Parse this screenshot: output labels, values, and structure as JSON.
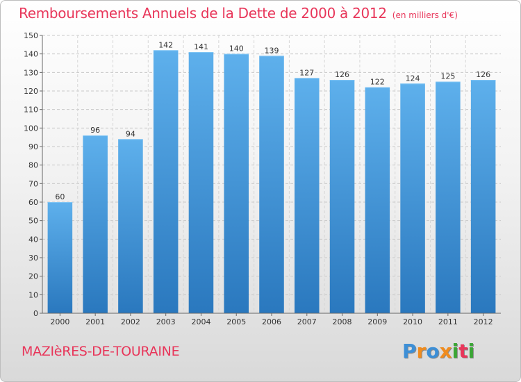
{
  "chart_data": {
    "type": "bar",
    "title": "Remboursements Annuels de la Dette de 2000 à 2012",
    "subtitle": "(en milliers d'€)",
    "categories": [
      "2000",
      "2001",
      "2002",
      "2003",
      "2004",
      "2005",
      "2006",
      "2007",
      "2008",
      "2009",
      "2010",
      "2011",
      "2012"
    ],
    "values": [
      60,
      96,
      94,
      142,
      141,
      140,
      139,
      127,
      126,
      122,
      124,
      125,
      126
    ],
    "xlabel": "",
    "ylabel": "",
    "ylim": [
      0,
      150
    ],
    "yticks": [
      0,
      10,
      20,
      30,
      40,
      50,
      60,
      70,
      80,
      90,
      100,
      110,
      120,
      130,
      140,
      150
    ],
    "grid": true,
    "bar_color": "#4a9fe0"
  },
  "footer": {
    "town": "MAZIèRES-DE-TOURAINE",
    "logo_text": "Proxiti",
    "logo_colors": [
      "#3d8fd6",
      "#f08c1e",
      "#3d8fd6",
      "#f08c1e",
      "#3aa635",
      "#e8365a",
      "#3aa635"
    ]
  }
}
